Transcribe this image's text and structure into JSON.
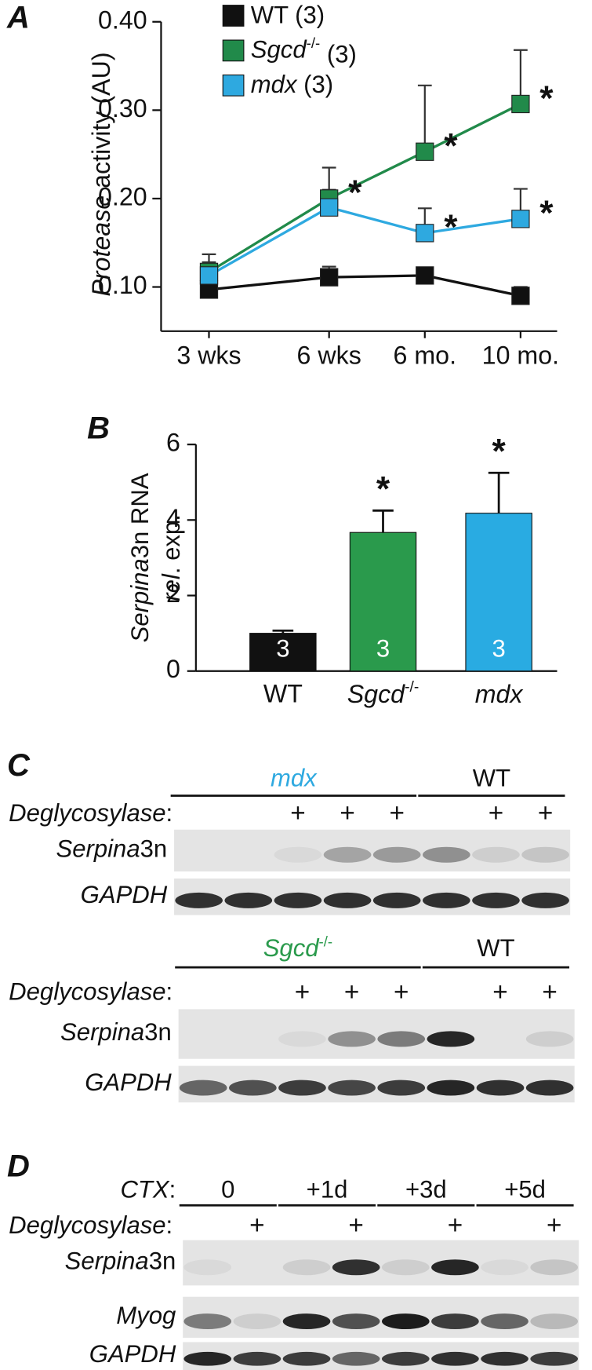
{
  "chart_data": [
    {
      "type": "line",
      "panel_label": "A",
      "y_label": "Protease activity (AU)",
      "categories": [
        "3 wks",
        "6 wks",
        "6 mo.",
        "10 mo."
      ],
      "ylim": [
        0.05,
        0.4
      ],
      "yticks": [
        {
          "value": 0.1,
          "label": "0.10"
        },
        {
          "value": 0.2,
          "label": "0.20"
        },
        {
          "value": 0.3,
          "label": "0.30"
        },
        {
          "value": 0.4,
          "label": "0.40"
        }
      ],
      "series": [
        {
          "name": "WT (3)",
          "color": "#111111",
          "values": [
            0.097,
            0.111,
            0.113,
            0.09
          ],
          "errors": [
            0.005,
            0.012,
            0.008,
            0.01
          ]
        },
        {
          "name": "Sgcd-/- (3)",
          "color": "#218a4a",
          "values": [
            0.117,
            0.2,
            0.253,
            0.307
          ],
          "errors": [
            0.02,
            0.035,
            0.075,
            0.061
          ],
          "significance": [
            null,
            "*",
            "*",
            "*"
          ]
        },
        {
          "name": "mdx (3)",
          "color": "#2ea9e0",
          "values": [
            0.113,
            0.19,
            0.161,
            0.177
          ],
          "errors": [
            0.015,
            0.02,
            0.028,
            0.034
          ],
          "significance": [
            null,
            null,
            "*",
            "*"
          ]
        }
      ]
    },
    {
      "type": "bar",
      "panel_label": "B",
      "y_label": [
        "Serpina3n RNA",
        "rel. exp."
      ],
      "categories": [
        "WT",
        "Sgcd-/-",
        "mdx"
      ],
      "colors": [
        "#111111",
        "#2a9a4c",
        "#29abe2"
      ],
      "values": [
        1.0,
        3.67,
        4.18
      ],
      "errors": [
        0.07,
        0.58,
        1.07
      ],
      "n_labels": [
        3,
        3,
        3
      ],
      "significance": [
        null,
        "*",
        "*"
      ],
      "ylim": [
        0,
        6
      ],
      "yticks": [
        0,
        2,
        4,
        6
      ]
    }
  ],
  "blots": [
    {
      "panel_label": "C",
      "groups": [
        {
          "label": "mdx",
          "color": "#2ea9e0"
        },
        {
          "label": "WT"
        }
      ],
      "row_header": "Deglycosylase:",
      "signs": [
        "+",
        "+",
        "+",
        "+",
        "+"
      ],
      "rows": [
        "Serpina3n",
        "GAPDH"
      ]
    },
    {
      "groups": [
        {
          "label": "Sgcd-/-",
          "color": "#2a9a4c"
        },
        {
          "label": "WT"
        }
      ],
      "row_header": "Deglycosylase:",
      "signs": [
        "+",
        "+",
        "+",
        "+",
        "+"
      ],
      "rows": [
        "Serpina3n",
        "GAPDH"
      ]
    },
    {
      "panel_label": "D",
      "groups_header": "CTX:",
      "groups": [
        {
          "label": "0"
        },
        {
          "label": "+1d"
        },
        {
          "label": "+3d"
        },
        {
          "label": "+5d"
        }
      ],
      "row_header": "Deglycosylase:",
      "signs": [
        "+",
        "+",
        "+",
        "+"
      ],
      "rows": [
        "Serpina3n",
        "Myog",
        "GAPDH"
      ]
    }
  ]
}
